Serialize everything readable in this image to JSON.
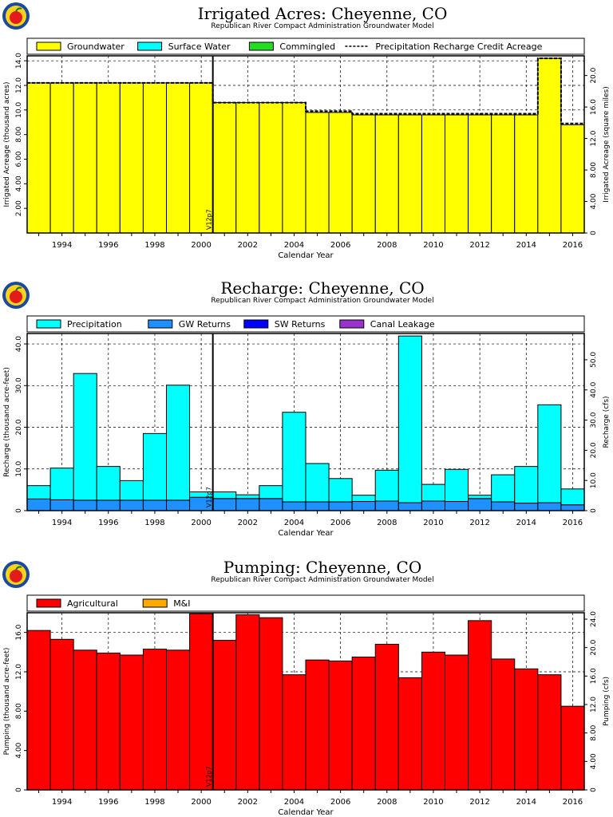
{
  "logo": "apple-logo",
  "colors": {
    "groundwater": "#ffff00",
    "surface_water": "#00ffff",
    "commingled": "#22dd22",
    "precipitation": "#00ffff",
    "gw_returns": "#1e90ff",
    "sw_returns": "#0000ff",
    "canal_leakage": "#9933cc",
    "agricultural": "#ff0000",
    "mi": "#ffaa00"
  },
  "chart_data": [
    {
      "type": "bar",
      "title": "Irrigated Acres: Cheyenne, CO",
      "subtitle": "Republican River Compact Administration Groundwater Model",
      "xlabel": "Calendar Year",
      "ylabel": "Irrigated Acreage (thousand acres)",
      "y2label": "Irrigated Acreage (square miles)",
      "xlim": [
        1992.5,
        2016.5
      ],
      "ylim": [
        0,
        14.4
      ],
      "y2lim": [
        0,
        22.5
      ],
      "yticks": [
        "2.00",
        "4.00",
        "6.00",
        "8.00",
        "10.0",
        "12.0",
        "14.0"
      ],
      "y2ticks": [
        "0",
        "4.00",
        "8.00",
        "12.0",
        "16.0",
        "20.0"
      ],
      "xticks": [
        "1994",
        "1996",
        "1998",
        "2000",
        "2002",
        "2004",
        "2006",
        "2008",
        "2010",
        "2012",
        "2014",
        "2016"
      ],
      "grid": true,
      "legend_position": "top",
      "legend": [
        "Groundwater",
        "Surface Water",
        "Commingled",
        "Precipitation Recharge Credit Acreage"
      ],
      "marker_label": "V12p7",
      "marker_x": 2000.5,
      "years": [
        1993,
        1994,
        1995,
        1996,
        1997,
        1998,
        1999,
        2000,
        2001,
        2002,
        2003,
        2004,
        2005,
        2006,
        2007,
        2008,
        2009,
        2010,
        2011,
        2012,
        2013,
        2014,
        2015,
        2016
      ],
      "series": [
        {
          "name": "Groundwater",
          "values": [
            12.2,
            12.2,
            12.2,
            12.2,
            12.2,
            12.2,
            12.2,
            12.2,
            10.6,
            10.6,
            10.6,
            10.6,
            9.8,
            9.8,
            9.6,
            9.6,
            9.6,
            9.6,
            9.6,
            9.6,
            9.6,
            9.6,
            14.2,
            8.8
          ]
        },
        {
          "name": "Surface Water",
          "values": [
            0,
            0,
            0,
            0,
            0,
            0,
            0,
            0,
            0,
            0,
            0,
            0,
            0,
            0,
            0,
            0,
            0,
            0,
            0,
            0,
            0,
            0,
            0,
            0
          ]
        },
        {
          "name": "Commingled",
          "values": [
            0,
            0,
            0,
            0,
            0,
            0,
            0,
            0,
            0,
            0,
            0,
            0,
            0,
            0,
            0,
            0,
            0,
            0,
            0,
            0,
            0,
            0,
            0,
            0
          ]
        }
      ],
      "line": {
        "name": "Precipitation Recharge Credit Acreage",
        "values": [
          12.2,
          12.2,
          12.2,
          12.2,
          12.2,
          12.2,
          12.2,
          12.2,
          10.6,
          10.6,
          10.6,
          10.6,
          9.9,
          9.9,
          9.7,
          9.7,
          9.7,
          9.7,
          9.7,
          9.7,
          9.7,
          9.7,
          14.2,
          8.9
        ]
      }
    },
    {
      "type": "bar",
      "title": "Recharge: Cheyenne, CO",
      "subtitle": "Republican River Compact Administration Groundwater Model",
      "xlabel": "Calendar Year",
      "ylabel": "Recharge (thousand acre-feet)",
      "y2label": "Recharge (cfs)",
      "xlim": [
        1992.5,
        2016.5
      ],
      "ylim": [
        0,
        42.5
      ],
      "y2lim": [
        0,
        58.7
      ],
      "yticks": [
        "0",
        "10.0",
        "20.0",
        "30.0",
        "40.0"
      ],
      "y2ticks": [
        "0",
        "10.0",
        "20.0",
        "30.0",
        "40.0",
        "50.0"
      ],
      "xticks": [
        "1994",
        "1996",
        "1998",
        "2000",
        "2002",
        "2004",
        "2006",
        "2008",
        "2010",
        "2012",
        "2014",
        "2016"
      ],
      "grid": true,
      "legend_position": "top",
      "legend": [
        "Precipitation",
        "GW Returns",
        "SW Returns",
        "Canal Leakage"
      ],
      "marker_label": "V12p7",
      "marker_x": 2000.5,
      "years": [
        1993,
        1994,
        1995,
        1996,
        1997,
        1998,
        1999,
        2000,
        2001,
        2002,
        2003,
        2004,
        2005,
        2006,
        2007,
        2008,
        2009,
        2010,
        2011,
        2012,
        2013,
        2014,
        2015,
        2016
      ],
      "series": [
        {
          "name": "GW Returns",
          "values": [
            2.8,
            2.6,
            2.5,
            2.5,
            2.5,
            2.5,
            2.5,
            3.2,
            2.9,
            2.9,
            2.9,
            2.1,
            2.1,
            2.1,
            2.2,
            2.3,
            1.9,
            2.3,
            2.2,
            2.9,
            2.1,
            1.8,
            1.9,
            1.4
          ]
        },
        {
          "name": "SW Returns",
          "values": [
            0,
            0,
            0,
            0,
            0,
            0,
            0,
            0,
            0,
            0,
            0,
            0,
            0,
            0,
            0,
            0,
            0,
            0,
            0,
            0,
            0,
            0,
            0,
            0
          ]
        },
        {
          "name": "Canal Leakage",
          "values": [
            0,
            0,
            0,
            0,
            0,
            0,
            0,
            0,
            0,
            0,
            0,
            0,
            0,
            0,
            0,
            0,
            0,
            0,
            0,
            0,
            0,
            0,
            0,
            0
          ]
        },
        {
          "name": "Precipitation",
          "values": [
            3.2,
            7.6,
            30.4,
            8.1,
            4.7,
            16.0,
            27.6,
            1.3,
            1.6,
            0.9,
            3.1,
            21.5,
            9.2,
            5.6,
            1.5,
            7.4,
            40.0,
            4.0,
            7.7,
            0.8,
            6.5,
            8.8,
            23.5,
            3.8
          ]
        }
      ]
    },
    {
      "type": "bar",
      "title": "Pumping: Cheyenne, CO",
      "subtitle": "Republican River Compact Administration Groundwater Model",
      "xlabel": "Calendar Year",
      "ylabel": "Pumping (thousand acre-feet)",
      "y2label": "Pumping (cfs)",
      "xlim": [
        1992.5,
        2016.5
      ],
      "ylim": [
        0,
        18.0
      ],
      "y2lim": [
        0,
        24.9
      ],
      "yticks": [
        "0",
        "4.00",
        "8.00",
        "12.0",
        "16.0"
      ],
      "y2ticks": [
        "0",
        "4.00",
        "8.00",
        "12.0",
        "16.0",
        "20.0",
        "24.0"
      ],
      "xticks": [
        "1994",
        "1996",
        "1998",
        "2000",
        "2002",
        "2004",
        "2006",
        "2008",
        "2010",
        "2012",
        "2014",
        "2016"
      ],
      "grid": true,
      "legend_position": "top",
      "legend": [
        "Agricultural",
        "M&I"
      ],
      "marker_label": "V12p7",
      "marker_x": 2000.5,
      "years": [
        1993,
        1994,
        1995,
        1996,
        1997,
        1998,
        1999,
        2000,
        2001,
        2002,
        2003,
        2004,
        2005,
        2006,
        2007,
        2008,
        2009,
        2010,
        2011,
        2012,
        2013,
        2014,
        2015,
        2016
      ],
      "series": [
        {
          "name": "Agricultural",
          "values": [
            16.2,
            15.3,
            14.2,
            13.9,
            13.7,
            14.3,
            14.2,
            17.9,
            15.2,
            17.8,
            17.5,
            11.7,
            13.2,
            13.1,
            13.5,
            14.8,
            11.4,
            14.0,
            13.7,
            17.2,
            13.3,
            12.3,
            11.7,
            8.5
          ]
        },
        {
          "name": "M&I",
          "values": [
            0,
            0,
            0,
            0,
            0,
            0,
            0,
            0,
            0,
            0,
            0,
            0,
            0,
            0,
            0,
            0,
            0,
            0,
            0,
            0,
            0,
            0,
            0,
            0
          ]
        }
      ]
    }
  ]
}
